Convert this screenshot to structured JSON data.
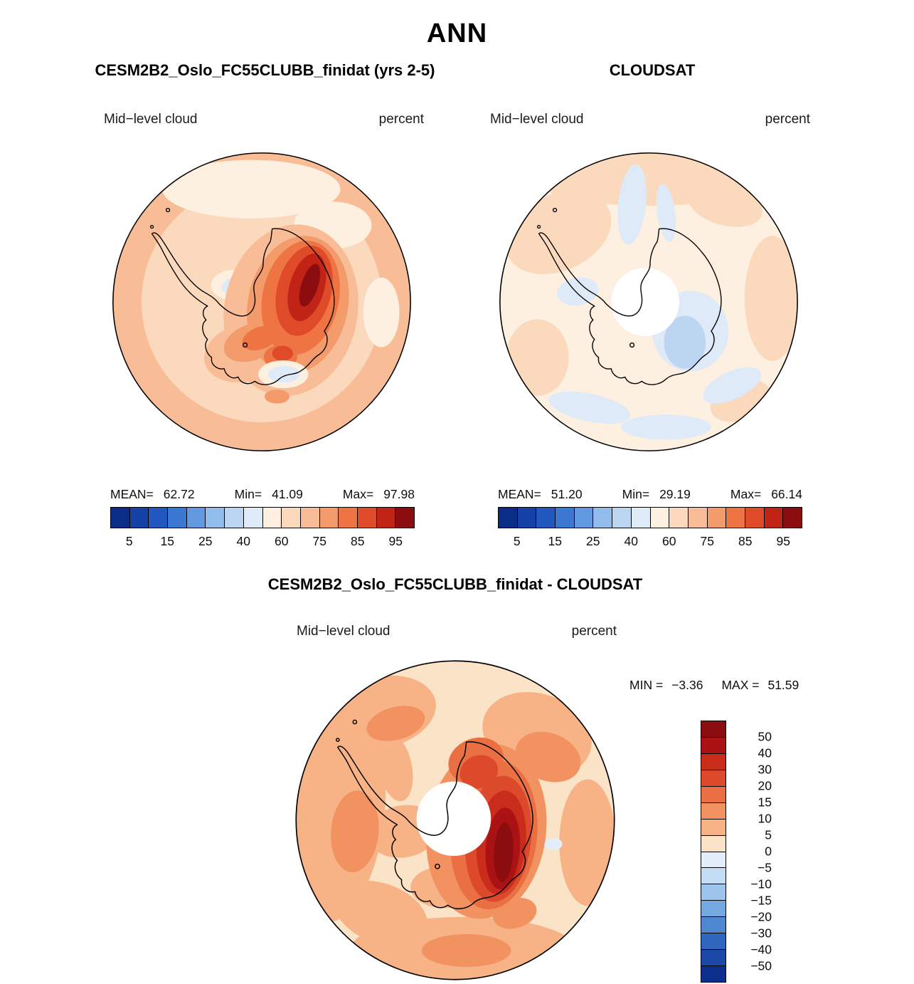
{
  "figure": {
    "title": "ANN",
    "background": "#ffffff"
  },
  "panels": {
    "model": {
      "title": "CESM2B2_Oslo_FC55CLUBB_finidat (yrs 2-5)",
      "field_label": "Mid−level cloud",
      "units_label": "percent",
      "stats": {
        "mean_label": "MEAN=",
        "mean_value": "62.72",
        "min_label": "Min=",
        "min_value": "41.09",
        "max_label": "Max=",
        "max_value": "97.98"
      }
    },
    "obs": {
      "title": "CLOUDSAT",
      "field_label": "Mid−level cloud",
      "units_label": "percent",
      "stats": {
        "mean_label": "MEAN=",
        "mean_value": "51.20",
        "min_label": "Min=",
        "min_value": "29.19",
        "max_label": "Max=",
        "max_value": "66.14"
      }
    },
    "diff": {
      "title": "CESM2B2_Oslo_FC55CLUBB_finidat - CLOUDSAT",
      "field_label": "Mid−level cloud",
      "units_label": "percent",
      "stats": {
        "min_label": "MIN =",
        "min_value": "−3.36",
        "max_label": "MAX =",
        "max_value": "51.59"
      }
    }
  },
  "colorbar_cloud_ticks": [
    "5",
    "15",
    "25",
    "40",
    "60",
    "75",
    "85",
    "95"
  ],
  "colorbar_diff_labels": [
    "50",
    "40",
    "30",
    "20",
    "15",
    "10",
    "5",
    "0",
    "−5",
    "−10",
    "−15",
    "−20",
    "−30",
    "−40",
    "−50"
  ],
  "palettes": {
    "cloud": [
      "#0a2d88",
      "#1641a6",
      "#2257c0",
      "#3a78d2",
      "#6399e0",
      "#92bcec",
      "#bcd6f2",
      "#dfeaf8",
      "#fdf0e0",
      "#fbd9bd",
      "#f8bd97",
      "#f49b6c",
      "#ee7444",
      "#df4a28",
      "#c12317",
      "#8c0d10"
    ],
    "diff": [
      "#8c0d10",
      "#ab1213",
      "#c92c1b",
      "#dd4a2b",
      "#ea6f42",
      "#f29261",
      "#f7b285",
      "#fbe3c8",
      "#e4eefa",
      "#c4dcf4",
      "#9cc4ec",
      "#74a8e0",
      "#4f88d0",
      "#2f66be",
      "#1c48a8",
      "#0c2e8c"
    ]
  },
  "missing_data_color": "#ffffff",
  "chart_data": [
    {
      "type": "heatmap",
      "subtype": "filled-contour south-polar stereographic map (Antarctica)",
      "panel": "top-left",
      "title": "CESM2B2_Oslo_FC55CLUBB_finidat (yrs 2-5)",
      "variable": "Mid-level cloud",
      "units": "percent",
      "mean": 62.72,
      "min": 41.09,
      "max": 97.98,
      "colorbar_tick_labels": [
        5,
        15,
        25,
        40,
        60,
        75,
        85,
        95
      ],
      "contour_levels_estimated": [
        0,
        5,
        10,
        15,
        20,
        25,
        30,
        40,
        50,
        60,
        70,
        75,
        80,
        85,
        90,
        95,
        100
      ],
      "legend_position": "bottom",
      "pattern": "60-75% over surrounding Southern Ocean; 50-60% cream patches offshore and near rim; small 40-50% pale-blue pockets over Weddell and Ross sectors; strong maximum exceeding 95% elongated over East Antarctica near the pole"
    },
    {
      "type": "heatmap",
      "subtype": "filled-contour south-polar stereographic map (Antarctica)",
      "panel": "top-right",
      "title": "CLOUDSAT",
      "variable": "Mid-level cloud",
      "units": "percent",
      "mean": 51.2,
      "min": 29.19,
      "max": 66.14,
      "colorbar_tick_labels": [
        5,
        15,
        25,
        40,
        60,
        75,
        85,
        95
      ],
      "contour_levels_estimated": [
        0,
        5,
        10,
        15,
        20,
        25,
        30,
        40,
        50,
        60,
        70,
        75,
        80,
        85,
        90,
        95,
        100
      ],
      "legend_position": "bottom",
      "pattern": "mostly 50-60% (cream) with widespread 40-50% pale-blue patches; 30-40% pocket east of the pole; white central disc = no CloudSat data poleward of orbit coverage"
    },
    {
      "type": "heatmap",
      "subtype": "filled-contour south-polar stereographic difference map (model minus observations)",
      "panel": "bottom",
      "title": "CESM2B2_Oslo_FC55CLUBB_finidat - CLOUDSAT",
      "variable": "Mid-level cloud difference",
      "units": "percent",
      "min": -3.36,
      "max": 51.59,
      "colorbar_tick_labels_top_to_bottom": [
        50,
        40,
        30,
        20,
        15,
        10,
        5,
        0,
        -5,
        -10,
        -15,
        -20,
        -30,
        -40,
        -50
      ],
      "legend_position": "right",
      "pattern": "mostly +0 to +15 everywhere; strong positive bias exceeding +40 to +50 elongated over East Antarctica just east of the pole; tiny near-zero/negative speck east of the maximum; white central disc = no CloudSat data"
    }
  ]
}
